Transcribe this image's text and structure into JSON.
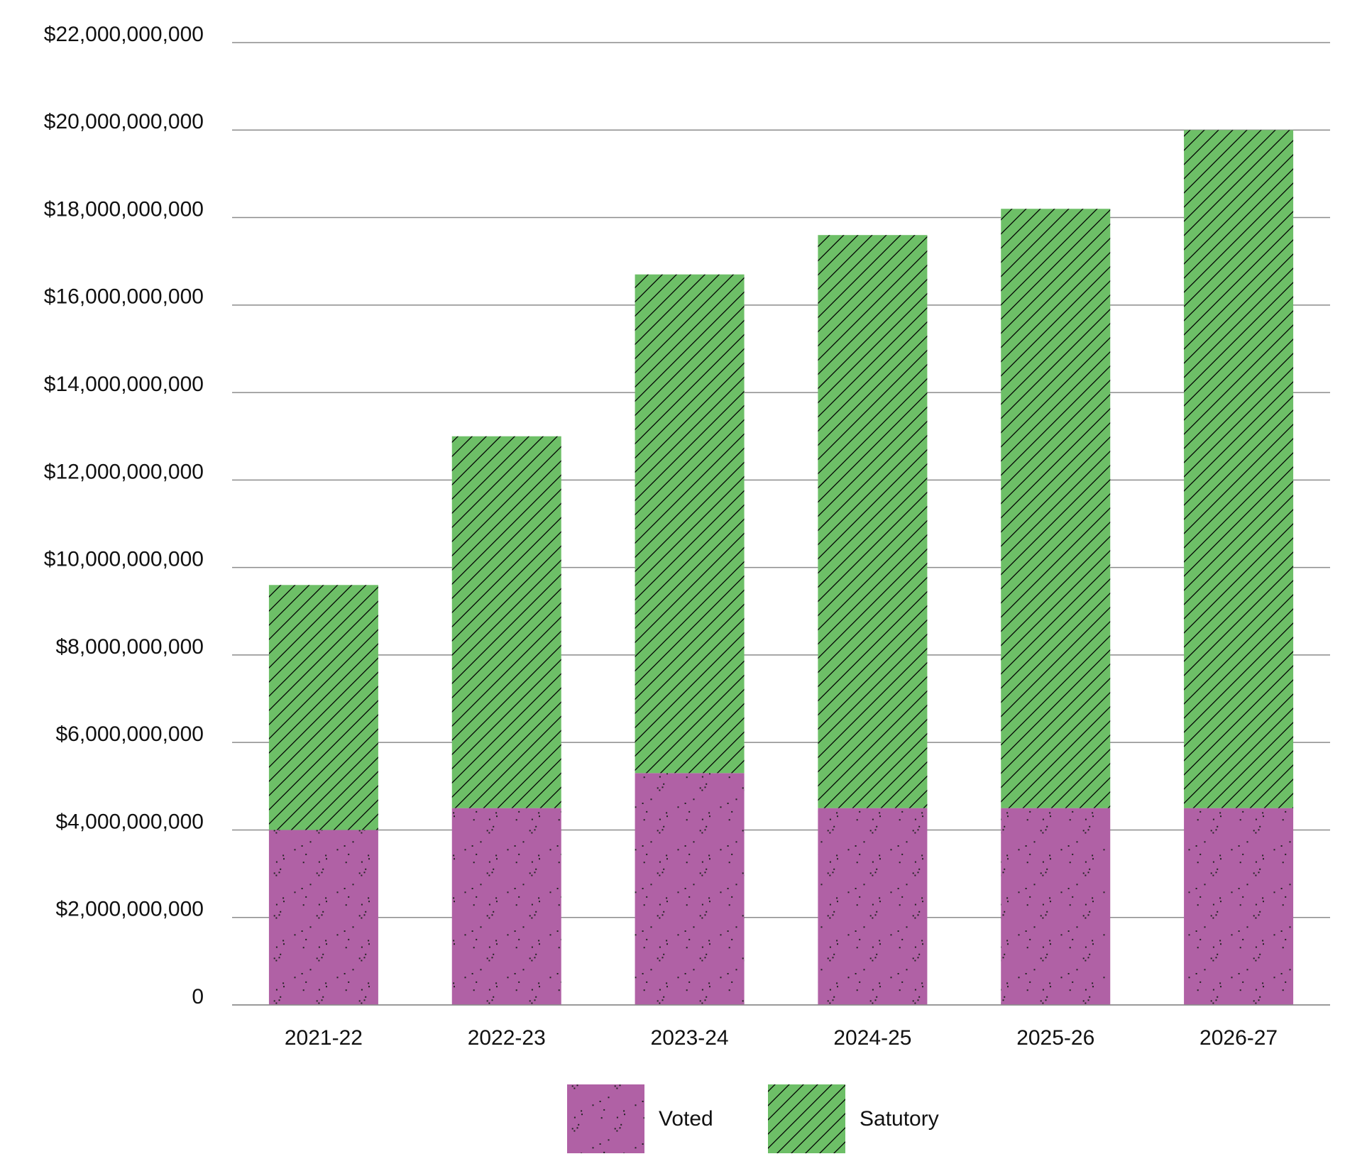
{
  "chart_data": {
    "type": "stacked_bar",
    "categories": [
      "2021-22",
      "2022-23",
      "2023-24",
      "2024-25",
      "2025-26",
      "2026-27"
    ],
    "series": [
      {
        "name": "Voted",
        "color": "#b061a5",
        "pattern": "dots",
        "values": [
          4000000000,
          4500000000,
          5300000000,
          4500000000,
          4500000000,
          4500000000
        ]
      },
      {
        "name": "Satutory",
        "color": "#6dbf67",
        "pattern": "hatch",
        "values": [
          5600000000,
          8500000000,
          11400000000,
          13100000000,
          13700000000,
          15500000000
        ]
      }
    ],
    "ylim": [
      0,
      22000000000
    ],
    "yticks": [
      0,
      {
        "value": 2000000000,
        "label": "$2,000,000,000"
      },
      {
        "value": 4000000000,
        "label": "$4,000,000,000"
      },
      {
        "value": 6000000000,
        "label": "$6,000,000,000"
      },
      {
        "value": 8000000000,
        "label": "$8,000,000,000"
      },
      {
        "value": 10000000000,
        "label": "$10,000,000,000"
      },
      {
        "value": 12000000000,
        "label": "$12,000,000,000"
      },
      {
        "value": 14000000000,
        "label": "$14,000,000,000"
      },
      {
        "value": 16000000000,
        "label": "$16,000,000,000"
      },
      {
        "value": 18000000000,
        "label": "$18,000,000,000"
      },
      {
        "value": 20000000000,
        "label": "$20,000,000,000"
      },
      {
        "value": 22000000000,
        "label": "$22,000,000,000"
      }
    ],
    "grid": true,
    "legend": "bottom"
  }
}
